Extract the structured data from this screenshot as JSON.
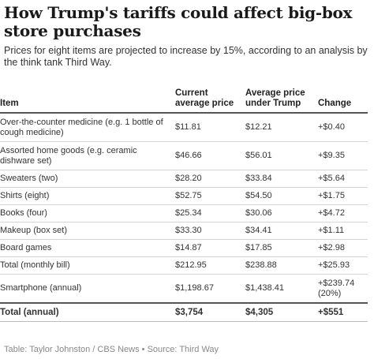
{
  "title": "How Trump's tariffs could affect big-box store purchases",
  "subtitle": "Prices for eight items are projected to increase by 15%, according to an analysis by the think tank Third Way.",
  "table": {
    "headers": [
      "Item",
      "Current average price",
      "Average price under Trump",
      "Change"
    ],
    "rows": [
      {
        "item": "Over-the-counter medicine (e.g. 1 bottle of cough medicine)",
        "current": "$11.81",
        "trump": "$12.21",
        "change": "+$0.40"
      },
      {
        "item": "Assorted home goods (e.g. ceramic dishware set)",
        "current": "$46.66",
        "trump": "$56.01",
        "change": "+$9.35"
      },
      {
        "item": "Sweaters (two)",
        "current": "$28.20",
        "trump": "$33.84",
        "change": "+$5.64"
      },
      {
        "item": "Shirts (eight)",
        "current": "$52.75",
        "trump": "$54.50",
        "change": "+$1.75"
      },
      {
        "item": "Books (four)",
        "current": "$25.34",
        "trump": "$30.06",
        "change": "+$4.72"
      },
      {
        "item": "Makeup (box set)",
        "current": "$33.30",
        "trump": "$34.41",
        "change": "+$1.11"
      },
      {
        "item": "Board games",
        "current": "$14.87",
        "trump": "$17.85",
        "change": "+$2.98"
      },
      {
        "item": "Total (monthly bill)",
        "current": "$212.95",
        "trump": "$238.88",
        "change": "+$25.93"
      },
      {
        "item": "Smartphone (annual)",
        "current": "$1,198.67",
        "trump": "$1,438.41",
        "change": "+$239.74 (20%)"
      }
    ],
    "total": {
      "item": "Total (annual)",
      "current": "$3,754",
      "trump": "$4,305",
      "change": "+$551"
    }
  },
  "source": "Table: Taylor Johnston / CBS News • Source: Third Way"
}
